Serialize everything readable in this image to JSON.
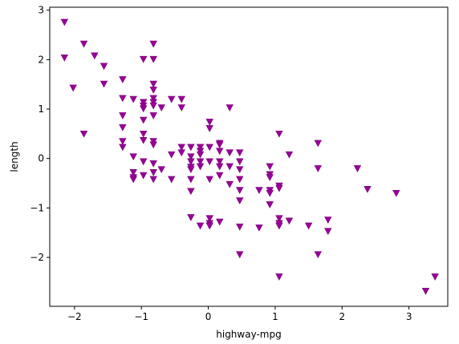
{
  "chart_data": {
    "type": "scatter",
    "title": "",
    "xlabel": "highway-mpg",
    "ylabel": "length",
    "xlim": [
      -2.37,
      3.58
    ],
    "ylim": [
      -2.99,
      3.06
    ],
    "xticks": [
      -2,
      -1,
      0,
      1,
      2,
      3
    ],
    "yticks": [
      -2,
      -1,
      0,
      1,
      2,
      3
    ],
    "xtick_labels": [
      "−2",
      "−1",
      "0",
      "1",
      "2",
      "3"
    ],
    "ytick_labels": [
      "−2",
      "−1",
      "0",
      "1",
      "2",
      "3"
    ],
    "grid": false,
    "legend": null,
    "marker": "triangle-down",
    "color": "#990099",
    "series": [
      {
        "points": [
          [
            -2.15,
            2.76
          ],
          [
            -2.15,
            2.04
          ],
          [
            -2.02,
            1.43
          ],
          [
            -1.86,
            2.32
          ],
          [
            -1.86,
            0.5
          ],
          [
            -1.7,
            2.08
          ],
          [
            -1.56,
            1.87
          ],
          [
            -1.56,
            1.51
          ],
          [
            -1.28,
            1.6
          ],
          [
            -1.28,
            1.22
          ],
          [
            -1.28,
            0.87
          ],
          [
            -1.28,
            0.63
          ],
          [
            -1.28,
            0.35
          ],
          [
            -1.28,
            0.23
          ],
          [
            -1.12,
            1.2
          ],
          [
            -1.12,
            0.04
          ],
          [
            -1.12,
            -0.28
          ],
          [
            -1.12,
            -0.38
          ],
          [
            -1.12,
            -0.42
          ],
          [
            -0.97,
            2.01
          ],
          [
            -0.97,
            1.14
          ],
          [
            -0.97,
            1.07
          ],
          [
            -0.97,
            1.01
          ],
          [
            -0.97,
            0.78
          ],
          [
            -0.97,
            0.5
          ],
          [
            -0.97,
            0.37
          ],
          [
            -0.97,
            -0.06
          ],
          [
            -0.97,
            -0.34
          ],
          [
            -0.82,
            2.32
          ],
          [
            -0.82,
            2.01
          ],
          [
            -0.82,
            1.51
          ],
          [
            -0.82,
            1.39
          ],
          [
            -0.82,
            1.22
          ],
          [
            -0.82,
            1.14
          ],
          [
            -0.82,
            1.07
          ],
          [
            -0.82,
            0.87
          ],
          [
            -0.82,
            0.35
          ],
          [
            -0.82,
            0.28
          ],
          [
            -0.82,
            -0.1
          ],
          [
            -0.82,
            -0.28
          ],
          [
            -0.82,
            -0.42
          ],
          [
            -0.7,
            1.03
          ],
          [
            -0.7,
            -0.22
          ],
          [
            -0.55,
            1.2
          ],
          [
            -0.55,
            0.08
          ],
          [
            -0.55,
            -0.42
          ],
          [
            -0.4,
            1.2
          ],
          [
            -0.4,
            1.03
          ],
          [
            -0.4,
            0.23
          ],
          [
            -0.4,
            0.12
          ],
          [
            -0.26,
            0.23
          ],
          [
            -0.26,
            0.04
          ],
          [
            -0.26,
            -0.06
          ],
          [
            -0.26,
            -0.17
          ],
          [
            -0.26,
            -0.22
          ],
          [
            -0.26,
            -0.42
          ],
          [
            -0.26,
            -0.66
          ],
          [
            -0.26,
            -1.19
          ],
          [
            -0.12,
            0.23
          ],
          [
            -0.12,
            0.15
          ],
          [
            -0.12,
            0.08
          ],
          [
            -0.12,
            -0.06
          ],
          [
            -0.12,
            -0.16
          ],
          [
            -0.12,
            -1.36
          ],
          [
            0.02,
            0.74
          ],
          [
            0.02,
            0.61
          ],
          [
            0.02,
            0.23
          ],
          [
            0.02,
            -0.06
          ],
          [
            0.02,
            -0.42
          ],
          [
            0.02,
            -1.21
          ],
          [
            0.02,
            -1.31
          ],
          [
            0.02,
            -1.36
          ],
          [
            0.17,
            0.31
          ],
          [
            0.17,
            0.28
          ],
          [
            0.17,
            0.15
          ],
          [
            0.17,
            -0.06
          ],
          [
            0.17,
            -0.16
          ],
          [
            0.17,
            -0.34
          ],
          [
            0.17,
            -1.28
          ],
          [
            0.32,
            1.03
          ],
          [
            0.32,
            0.12
          ],
          [
            0.32,
            -0.16
          ],
          [
            0.32,
            -0.52
          ],
          [
            0.47,
            0.12
          ],
          [
            0.47,
            -0.06
          ],
          [
            0.47,
            -0.22
          ],
          [
            0.47,
            -0.42
          ],
          [
            0.47,
            -0.64
          ],
          [
            0.47,
            -0.85
          ],
          [
            0.47,
            -1.38
          ],
          [
            0.47,
            -1.94
          ],
          [
            0.76,
            -0.64
          ],
          [
            0.76,
            -1.4
          ],
          [
            0.92,
            -0.16
          ],
          [
            0.92,
            -0.32
          ],
          [
            0.92,
            -0.38
          ],
          [
            0.92,
            -0.64
          ],
          [
            0.92,
            -0.7
          ],
          [
            0.92,
            -0.93
          ],
          [
            1.06,
            0.5
          ],
          [
            1.06,
            -0.55
          ],
          [
            1.06,
            -0.6
          ],
          [
            1.06,
            -1.21
          ],
          [
            1.06,
            -1.31
          ],
          [
            1.06,
            -1.36
          ],
          [
            1.06,
            -2.39
          ],
          [
            1.21,
            0.08
          ],
          [
            1.21,
            -1.26
          ],
          [
            1.5,
            -1.36
          ],
          [
            1.64,
            0.31
          ],
          [
            1.64,
            -0.2
          ],
          [
            1.64,
            -1.94
          ],
          [
            1.79,
            -1.24
          ],
          [
            1.79,
            -1.47
          ],
          [
            2.23,
            -0.2
          ],
          [
            2.38,
            -0.62
          ],
          [
            2.81,
            -0.7
          ],
          [
            3.25,
            -2.68
          ],
          [
            3.39,
            -2.39
          ]
        ]
      }
    ]
  }
}
